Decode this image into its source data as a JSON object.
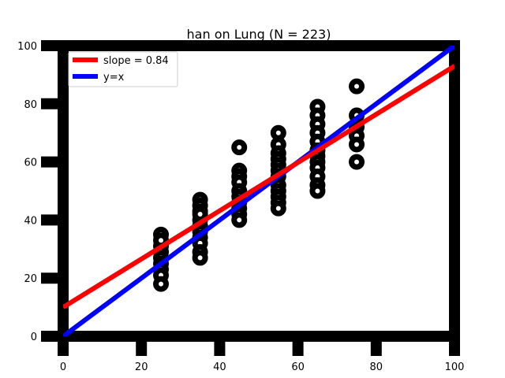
{
  "chart_data": {
    "type": "scatter",
    "title": "han on Lung (N = 223)",
    "xlim": [
      0,
      100
    ],
    "ylim": [
      0,
      100
    ],
    "xticks": [
      0,
      20,
      40,
      60,
      80,
      100
    ],
    "yticks": [
      0,
      20,
      40,
      60,
      80,
      100
    ],
    "grid": false,
    "legend_position": "top-left",
    "colors": {
      "regression": "#ff0000",
      "identity": "#0000ff",
      "points": "#000000"
    },
    "series": [
      {
        "kind": "points",
        "x": [
          25,
          25,
          25,
          25,
          25,
          25,
          25,
          25,
          25,
          35,
          35,
          35,
          35,
          35,
          35,
          35,
          35,
          35,
          35,
          35,
          45,
          45,
          45,
          45,
          45,
          45,
          45,
          45,
          45,
          45,
          55,
          55,
          55,
          55,
          55,
          55,
          55,
          55,
          55,
          55,
          55,
          55,
          65,
          65,
          65,
          65,
          65,
          65,
          65,
          65,
          65,
          65,
          65,
          65,
          75,
          75,
          75,
          75,
          75,
          75
        ],
        "y": [
          35,
          31,
          29,
          27,
          25,
          23,
          21,
          18,
          33,
          47,
          45,
          43,
          40,
          38,
          36,
          34,
          32,
          29,
          27,
          42,
          65,
          57,
          55,
          53,
          50,
          48,
          46,
          44,
          42,
          40,
          70,
          66,
          63,
          61,
          59,
          57,
          55,
          52,
          50,
          48,
          46,
          44,
          79,
          76,
          73,
          70,
          67,
          64,
          62,
          60,
          58,
          55,
          52,
          50,
          86,
          76,
          72,
          69,
          66,
          60
        ]
      },
      {
        "kind": "line",
        "name": "slope = 0.84",
        "x": [
          0,
          100
        ],
        "y": [
          10,
          93
        ]
      },
      {
        "kind": "line",
        "name": "y=x",
        "x": [
          0,
          100
        ],
        "y": [
          0,
          100
        ]
      }
    ]
  }
}
